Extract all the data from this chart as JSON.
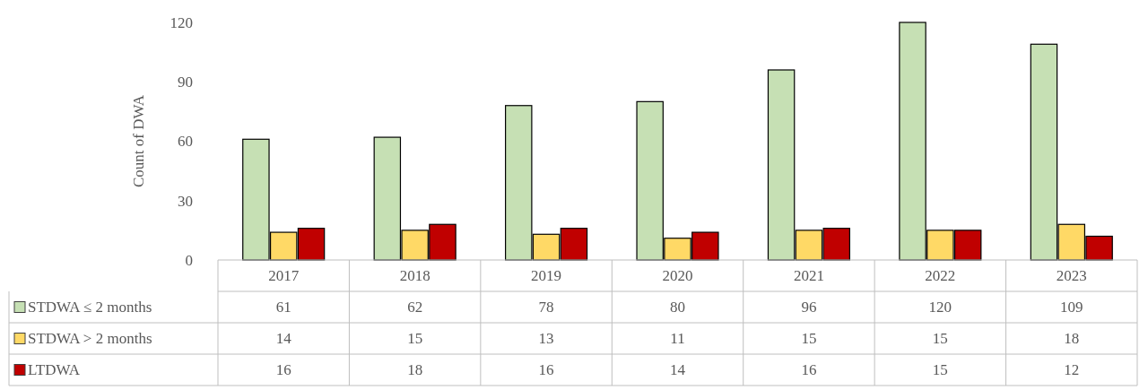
{
  "chart_data": {
    "type": "bar",
    "ylabel": "Count of DWA",
    "categories": [
      "2017",
      "2018",
      "2019",
      "2020",
      "2021",
      "2022",
      "2023"
    ],
    "series": [
      {
        "name": "STDWA ≤ 2 months",
        "color": "#c6e0b4",
        "values": [
          61,
          62,
          78,
          80,
          96,
          120,
          109
        ]
      },
      {
        "name": "STDWA > 2 months",
        "color": "#ffd966",
        "values": [
          14,
          15,
          13,
          11,
          15,
          15,
          18
        ]
      },
      {
        "name": "LTDWA",
        "color": "#c00000",
        "values": [
          16,
          18,
          16,
          14,
          16,
          15,
          12
        ]
      }
    ],
    "ylim": [
      0,
      120
    ],
    "yticks": [
      0,
      30,
      60,
      90,
      120
    ],
    "grid": false,
    "legend": "bottom",
    "data_labels": true
  }
}
